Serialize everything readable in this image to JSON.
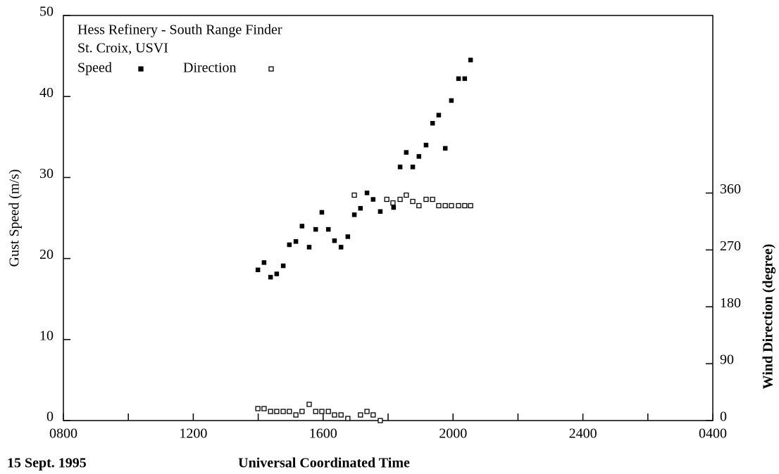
{
  "chart_data": {
    "type": "scatter",
    "title_lines": [
      "Hess Refinery - South Range Finder",
      "St. Croix, USVI"
    ],
    "xlabel": "Universal Coordinated Time",
    "ylabel": "Gust Speed (m/s)",
    "y2label": "Wind Direction (degree)",
    "annotation": "15 Sept. 1995",
    "xlim": [
      8,
      28
    ],
    "xticks": [
      {
        "value": 8,
        "label": "0800"
      },
      {
        "value": 12,
        "label": "1200"
      },
      {
        "value": 16,
        "label": "1600"
      },
      {
        "value": 20,
        "label": "2000"
      },
      {
        "value": 24,
        "label": "2400"
      },
      {
        "value": 28,
        "label": "0400"
      }
    ],
    "xminorticks": [
      10,
      14,
      18,
      22,
      26
    ],
    "ylim": [
      0,
      50
    ],
    "yticks": [
      0,
      10,
      20,
      30,
      40,
      50
    ],
    "y2lim": [
      0,
      641
    ],
    "y2ticks": [
      0,
      90,
      180,
      270,
      360
    ],
    "series": [
      {
        "name": "Speed",
        "color": "#000000",
        "marker": "filled-square",
        "x": [
          13.99,
          14.18,
          14.38,
          14.57,
          14.77,
          14.96,
          15.16,
          15.35,
          15.57,
          15.77,
          15.96,
          16.16,
          16.35,
          16.55,
          16.76,
          16.96,
          17.15,
          17.35,
          17.54,
          17.76,
          18.17,
          18.37,
          18.56,
          18.76,
          18.95,
          19.17,
          19.37,
          19.56,
          19.76,
          19.95,
          20.17,
          20.36,
          20.54
        ],
        "values": [
          18.6,
          19.5,
          17.7,
          18.1,
          19.1,
          21.7,
          22.1,
          24.0,
          21.4,
          23.6,
          25.7,
          23.6,
          22.2,
          21.4,
          22.7,
          25.4,
          26.2,
          28.1,
          27.3,
          25.8,
          26.3,
          31.3,
          33.1,
          31.3,
          32.6,
          34.0,
          36.7,
          37.7,
          33.6,
          39.5,
          42.2,
          42.2,
          44.5
        ]
      },
      {
        "name": "Direction",
        "color": "#000000",
        "marker": "open-square",
        "axis": "y2",
        "x": [
          13.99,
          14.18,
          14.38,
          14.57,
          14.77,
          14.96,
          15.16,
          15.35,
          15.57,
          15.77,
          15.96,
          16.16,
          16.35,
          16.55,
          16.76,
          16.96,
          17.15,
          17.35,
          17.54,
          17.76,
          17.96,
          18.15,
          18.37,
          18.56,
          18.76,
          18.95,
          19.17,
          19.37,
          19.56,
          19.76,
          19.95,
          20.17,
          20.36,
          20.54
        ],
        "values": [
          18.9,
          18.9,
          14.4,
          14.4,
          14.4,
          14.4,
          8.9,
          14.4,
          25.6,
          14.4,
          14.4,
          14.4,
          8.9,
          8.9,
          3.3,
          356.7,
          8.9,
          14.4,
          8.9,
          0,
          350,
          344.4,
          350,
          356.7,
          346.7,
          340,
          350,
          350,
          340,
          340,
          340,
          340,
          340,
          340
        ]
      }
    ]
  }
}
